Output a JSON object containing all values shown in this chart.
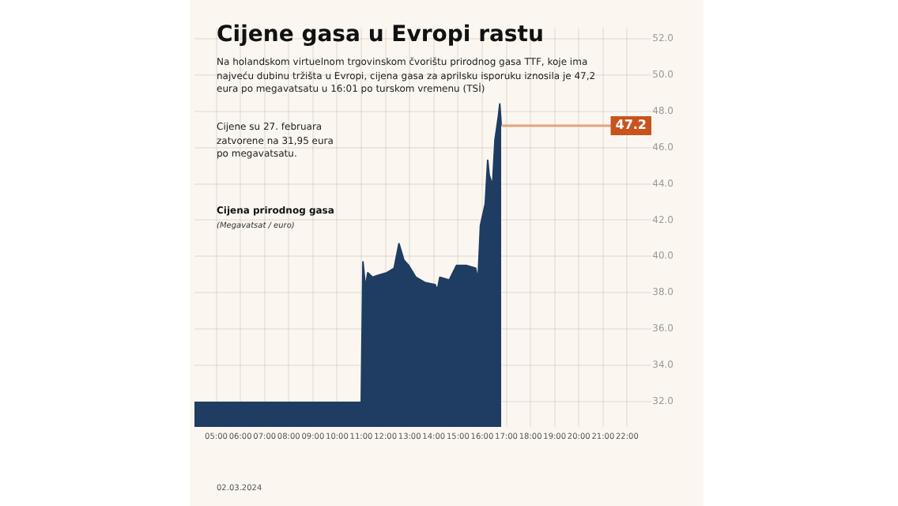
{
  "chart_data": {
    "type": "area",
    "title": "Cijene gasa u Evropi rastu",
    "subtitle": "Na holandskom virtuelnom trgovinskom čvorištu prirodnog gasa TTF, koje ima najveću dubinu tržišta u Evropi, cijena gasa za aprilsku isporuku iznosila je 47,2 eura po megavatsatu u 16:01 po turskom vremenu (TSİ)",
    "ylabel": "Cijena prirodnog gasa",
    "annotations": [
      "Cijene su 27. februara zatvorene na 31,95 eura po megavatsatu.",
      "(Megavatsat / euro)",
      "02.03.2024"
    ],
    "x": [
      4.1,
      11.0,
      11.07,
      11.17,
      11.27,
      11.47,
      11.67,
      12.06,
      12.36,
      12.56,
      12.76,
      12.96,
      13.26,
      13.65,
      14.05,
      14.15,
      14.25,
      14.64,
      14.94,
      15.34,
      15.73,
      15.83,
      15.93,
      16.13,
      16.23,
      16.29,
      16.43,
      16.53,
      16.67,
      16.73,
      16.79
    ],
    "values": [
      31.95,
      31.95,
      39.7,
      38.3,
      39.1,
      38.85,
      38.95,
      39.1,
      39.35,
      40.7,
      39.8,
      39.5,
      38.85,
      38.55,
      38.45,
      38.15,
      38.85,
      38.7,
      39.5,
      39.5,
      39.35,
      38.7,
      41.7,
      42.9,
      45.3,
      44.5,
      43.9,
      46.4,
      47.7,
      48.4,
      47.2
    ],
    "color": "#1f3d63",
    "xlim": [
      4.1,
      23
    ],
    "xticks": [
      {
        "value": 5,
        "label": "05:00"
      },
      {
        "value": 6,
        "label": "06:00"
      },
      {
        "value": 7,
        "label": "07:00"
      },
      {
        "value": 8,
        "label": "08:00"
      },
      {
        "value": 9,
        "label": "09:00"
      },
      {
        "value": 10,
        "label": "10:00"
      },
      {
        "value": 11,
        "label": "11:00"
      },
      {
        "value": 12,
        "label": "12:00"
      },
      {
        "value": 13,
        "label": "13:00"
      },
      {
        "value": 14,
        "label": "14:00"
      },
      {
        "value": 15,
        "label": "15:00"
      },
      {
        "value": 16,
        "label": "16:00"
      },
      {
        "value": 17,
        "label": "17:00"
      },
      {
        "value": 18,
        "label": "18:00"
      },
      {
        "value": 19,
        "label": "19:00"
      },
      {
        "value": 20,
        "label": "20:00"
      },
      {
        "value": 21,
        "label": "21:00"
      },
      {
        "value": 22,
        "label": "22:00"
      }
    ],
    "ylim": [
      30.6,
      52.6
    ],
    "yticks": [
      {
        "value": 32,
        "label": "32.0"
      },
      {
        "value": 34,
        "label": "34.0"
      },
      {
        "value": 36,
        "label": "36.0"
      },
      {
        "value": 38,
        "label": "38.0"
      },
      {
        "value": 40,
        "label": "40.0"
      },
      {
        "value": 42,
        "label": "42.0"
      },
      {
        "value": 44,
        "label": "44.0"
      },
      {
        "value": 46,
        "label": "46.0"
      },
      {
        "value": 48,
        "label": "48.0"
      },
      {
        "value": 50,
        "label": "50.0"
      },
      {
        "value": 52,
        "label": "52.0"
      }
    ],
    "ref_lines": [
      {
        "axis": "y",
        "value": 47.2,
        "label": "47.2",
        "color": "#e3a27f"
      }
    ],
    "grid": true,
    "marker": "none",
    "line_style": "solid"
  }
}
